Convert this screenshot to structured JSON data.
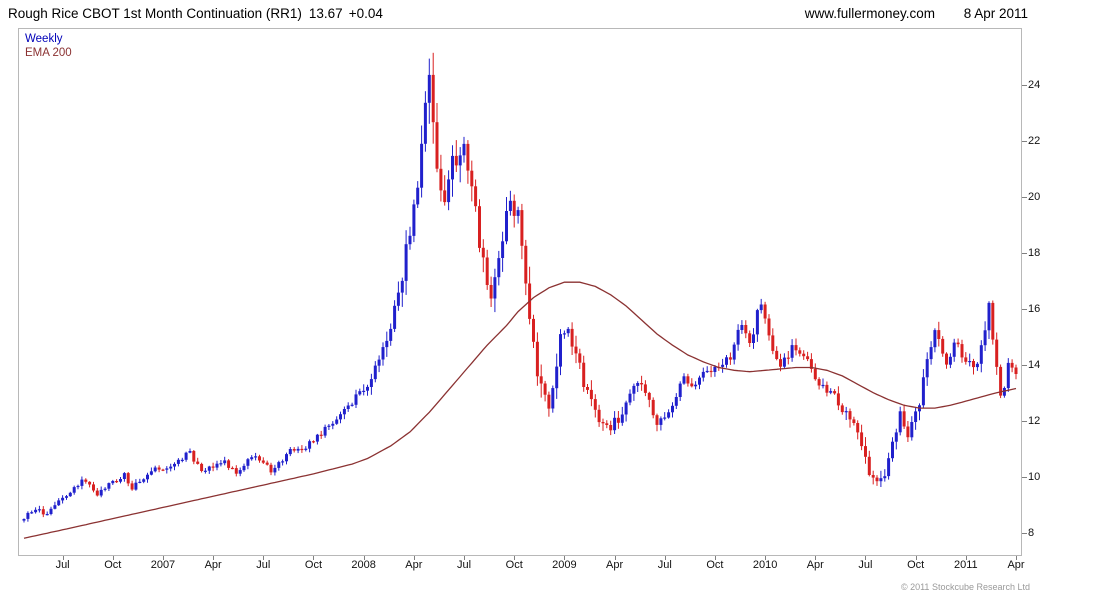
{
  "header": {
    "title": "Rough Rice CBOT 1st Month Continuation (RR1)",
    "last_price": "13.67",
    "change": "+0.04",
    "website": "www.fullermoney.com",
    "date": "8 Apr 2011"
  },
  "legend": {
    "price_series": "Weekly",
    "ema_series": "EMA 200"
  },
  "footer": {
    "copyright": "© 2011 Stockcube Research Ltd"
  },
  "colors": {
    "up_candle": "#2020CC",
    "down_candle": "#D82020",
    "ema_line": "#8B3232",
    "legend_weekly": "#0000B8",
    "axis_text": "#111111",
    "plot_border": "#b8b8b8",
    "tick_mark": "#808080",
    "copyright_text": "#9a9a9a"
  },
  "chart_data": {
    "type": "candlestick",
    "title": "Rough Rice CBOT 1st Month Continuation (RR1)",
    "x_unit": "week",
    "weeks_total": 257,
    "date_range": [
      "Apr 2006",
      "8 Apr 2011"
    ],
    "ylim": [
      7.2,
      26.0
    ],
    "y_ticks": [
      8,
      10,
      12,
      14,
      16,
      18,
      20,
      22,
      24
    ],
    "y_axis_side": "right",
    "grid": "off",
    "legend_position": "top-left",
    "last_close": 13.67,
    "x_ticks": [
      {
        "week": 10,
        "label": "Jul"
      },
      {
        "week": 23,
        "label": "Oct"
      },
      {
        "week": 36,
        "label": "2007"
      },
      {
        "week": 49,
        "label": "Apr"
      },
      {
        "week": 62,
        "label": "Jul"
      },
      {
        "week": 75,
        "label": "Oct"
      },
      {
        "week": 88,
        "label": "2008"
      },
      {
        "week": 101,
        "label": "Apr"
      },
      {
        "week": 114,
        "label": "Jul"
      },
      {
        "week": 127,
        "label": "Oct"
      },
      {
        "week": 140,
        "label": "2009"
      },
      {
        "week": 153,
        "label": "Apr"
      },
      {
        "week": 166,
        "label": "Jul"
      },
      {
        "week": 179,
        "label": "Oct"
      },
      {
        "week": 192,
        "label": "2010"
      },
      {
        "week": 205,
        "label": "Apr"
      },
      {
        "week": 218,
        "label": "Jul"
      },
      {
        "week": 231,
        "label": "Oct"
      },
      {
        "week": 244,
        "label": "2011"
      },
      {
        "week": 257,
        "label": "Apr"
      }
    ],
    "price_close_anchors": [
      [
        0,
        8.55
      ],
      [
        3,
        8.8
      ],
      [
        6,
        8.7
      ],
      [
        10,
        9.2
      ],
      [
        14,
        9.75
      ],
      [
        16,
        9.9
      ],
      [
        19,
        9.35
      ],
      [
        23,
        9.8
      ],
      [
        26,
        10.05
      ],
      [
        28,
        9.6
      ],
      [
        33,
        10.25
      ],
      [
        36,
        10.3
      ],
      [
        40,
        10.6
      ],
      [
        43,
        10.85
      ],
      [
        46,
        10.15
      ],
      [
        49,
        10.4
      ],
      [
        52,
        10.5
      ],
      [
        55,
        10.15
      ],
      [
        59,
        10.7
      ],
      [
        62,
        10.5
      ],
      [
        64,
        10.2
      ],
      [
        69,
        10.9
      ],
      [
        73,
        11.1
      ],
      [
        75,
        11.25
      ],
      [
        78,
        11.7
      ],
      [
        82,
        12.2
      ],
      [
        85,
        12.7
      ],
      [
        89,
        13.2
      ],
      [
        92,
        14.2
      ],
      [
        95,
        15.5
      ],
      [
        98,
        17.0
      ],
      [
        100,
        19.0
      ],
      [
        102,
        20.8
      ],
      [
        104,
        23.2
      ],
      [
        105,
        24.5
      ],
      [
        106,
        23.0
      ],
      [
        107,
        20.8
      ],
      [
        108,
        19.8
      ],
      [
        110,
        20.8
      ],
      [
        113,
        21.8
      ],
      [
        115,
        21.2
      ],
      [
        117,
        19.5
      ],
      [
        119,
        17.5
      ],
      [
        121,
        16.6
      ],
      [
        123,
        17.8
      ],
      [
        125,
        19.3
      ],
      [
        126,
        20.0
      ],
      [
        128,
        19.2
      ],
      [
        130,
        17.0
      ],
      [
        131,
        15.8
      ],
      [
        133,
        13.8
      ],
      [
        135,
        12.9
      ],
      [
        136,
        12.7
      ],
      [
        138,
        14.2
      ],
      [
        140,
        15.4
      ],
      [
        141,
        15.2
      ],
      [
        144,
        13.9
      ],
      [
        146,
        13.0
      ],
      [
        148,
        12.3
      ],
      [
        151,
        11.7
      ],
      [
        154,
        12.1
      ],
      [
        157,
        13.0
      ],
      [
        159,
        13.4
      ],
      [
        162,
        12.6
      ],
      [
        164,
        11.9
      ],
      [
        166,
        12.1
      ],
      [
        168,
        12.6
      ],
      [
        171,
        13.6
      ],
      [
        173,
        13.1
      ],
      [
        176,
        13.8
      ],
      [
        180,
        13.9
      ],
      [
        183,
        14.3
      ],
      [
        186,
        15.5
      ],
      [
        188,
        14.7
      ],
      [
        190,
        15.8
      ],
      [
        191,
        16.0
      ],
      [
        193,
        15.0
      ],
      [
        196,
        14.0
      ],
      [
        199,
        14.6
      ],
      [
        203,
        14.2
      ],
      [
        206,
        13.3
      ],
      [
        210,
        12.8
      ],
      [
        214,
        12.1
      ],
      [
        217,
        11.0
      ],
      [
        219,
        10.2
      ],
      [
        221,
        9.75
      ],
      [
        223,
        10.1
      ],
      [
        227,
        12.3
      ],
      [
        229,
        11.5
      ],
      [
        232,
        12.7
      ],
      [
        234,
        14.0
      ],
      [
        236,
        15.2
      ],
      [
        239,
        13.9
      ],
      [
        241,
        14.8
      ],
      [
        244,
        14.1
      ],
      [
        247,
        13.9
      ],
      [
        249,
        15.3
      ],
      [
        250,
        16.0
      ],
      [
        251,
        14.8
      ],
      [
        253,
        13.1
      ],
      [
        254,
        12.95
      ],
      [
        255,
        14.0
      ],
      [
        257,
        13.67
      ]
    ],
    "ema200_anchors": [
      [
        0,
        7.8
      ],
      [
        10,
        8.1
      ],
      [
        23,
        8.5
      ],
      [
        36,
        8.9
      ],
      [
        49,
        9.3
      ],
      [
        62,
        9.7
      ],
      [
        75,
        10.1
      ],
      [
        85,
        10.45
      ],
      [
        89,
        10.65
      ],
      [
        95,
        11.1
      ],
      [
        100,
        11.6
      ],
      [
        105,
        12.3
      ],
      [
        110,
        13.1
      ],
      [
        115,
        13.9
      ],
      [
        120,
        14.7
      ],
      [
        125,
        15.4
      ],
      [
        128,
        15.9
      ],
      [
        132,
        16.4
      ],
      [
        136,
        16.75
      ],
      [
        140,
        16.95
      ],
      [
        144,
        16.95
      ],
      [
        148,
        16.8
      ],
      [
        152,
        16.5
      ],
      [
        156,
        16.1
      ],
      [
        160,
        15.6
      ],
      [
        164,
        15.1
      ],
      [
        168,
        14.7
      ],
      [
        172,
        14.35
      ],
      [
        176,
        14.1
      ],
      [
        180,
        13.9
      ],
      [
        184,
        13.8
      ],
      [
        188,
        13.75
      ],
      [
        192,
        13.8
      ],
      [
        196,
        13.85
      ],
      [
        200,
        13.9
      ],
      [
        204,
        13.9
      ],
      [
        208,
        13.8
      ],
      [
        212,
        13.6
      ],
      [
        216,
        13.3
      ],
      [
        220,
        13.0
      ],
      [
        224,
        12.75
      ],
      [
        228,
        12.55
      ],
      [
        232,
        12.45
      ],
      [
        236,
        12.45
      ],
      [
        240,
        12.55
      ],
      [
        244,
        12.7
      ],
      [
        248,
        12.85
      ],
      [
        252,
        13.0
      ],
      [
        257,
        13.15
      ]
    ],
    "volatility_anchors": [
      [
        0,
        0.14
      ],
      [
        70,
        0.16
      ],
      [
        85,
        0.22
      ],
      [
        92,
        0.35
      ],
      [
        97,
        0.55
      ],
      [
        100,
        0.75
      ],
      [
        104,
        0.95
      ],
      [
        108,
        0.85
      ],
      [
        112,
        0.7
      ],
      [
        118,
        0.6
      ],
      [
        126,
        0.6
      ],
      [
        132,
        0.7
      ],
      [
        136,
        0.55
      ],
      [
        142,
        0.45
      ],
      [
        150,
        0.35
      ],
      [
        160,
        0.3
      ],
      [
        172,
        0.25
      ],
      [
        180,
        0.22
      ],
      [
        186,
        0.32
      ],
      [
        193,
        0.3
      ],
      [
        203,
        0.25
      ],
      [
        210,
        0.3
      ],
      [
        217,
        0.38
      ],
      [
        222,
        0.32
      ],
      [
        228,
        0.3
      ],
      [
        234,
        0.38
      ],
      [
        240,
        0.3
      ],
      [
        246,
        0.3
      ],
      [
        250,
        0.45
      ],
      [
        253,
        0.4
      ],
      [
        257,
        0.28
      ]
    ]
  }
}
